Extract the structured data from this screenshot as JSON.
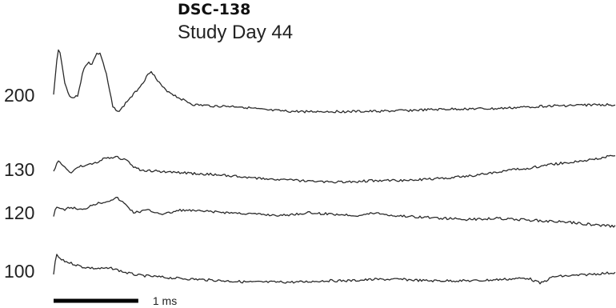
{
  "header": {
    "subject_id": "DSC-138",
    "session": "Study Day 44"
  },
  "chart_data": {
    "type": "line",
    "title": "DSC-138",
    "subtitle": "Study Day 44",
    "xlabel": "",
    "ylabel": "",
    "scale_bar": {
      "value": 1,
      "unit": "ms",
      "label": "1 ms"
    },
    "x_range_ms": [
      0,
      6.64
    ],
    "grid": false,
    "legend": "none",
    "line_color": "#2a2a2a",
    "series": [
      {
        "name": "200",
        "points": [
          [
            0,
            0
          ],
          [
            0.03,
            -1.1
          ],
          [
            0.06,
            -1.75
          ],
          [
            0.09,
            -1.35
          ],
          [
            0.13,
            -0.45
          ],
          [
            0.2,
            0.1
          ],
          [
            0.28,
            0.05
          ],
          [
            0.35,
            -0.9
          ],
          [
            0.41,
            -1.25
          ],
          [
            0.45,
            -1.1
          ],
          [
            0.5,
            -1.5
          ],
          [
            0.55,
            -1.55
          ],
          [
            0.62,
            -0.8
          ],
          [
            0.7,
            0.45
          ],
          [
            0.78,
            0.6
          ],
          [
            0.86,
            0.25
          ],
          [
            0.95,
            -0.05
          ],
          [
            1.05,
            -0.45
          ],
          [
            1.15,
            -0.92
          ],
          [
            1.22,
            -0.55
          ],
          [
            1.3,
            -0.25
          ],
          [
            1.45,
            0.05
          ],
          [
            1.65,
            0.35
          ],
          [
            1.9,
            0.4
          ],
          [
            2.2,
            0.42
          ],
          [
            2.5,
            0.55
          ],
          [
            2.8,
            0.6
          ],
          [
            3.1,
            0.6
          ],
          [
            3.4,
            0.6
          ],
          [
            3.7,
            0.6
          ],
          [
            4.0,
            0.58
          ],
          [
            4.3,
            0.55
          ],
          [
            4.6,
            0.52
          ],
          [
            4.9,
            0.5
          ],
          [
            5.2,
            0.5
          ],
          [
            5.5,
            0.45
          ],
          [
            5.8,
            0.4
          ],
          [
            6.1,
            0.38
          ],
          [
            6.4,
            0.35
          ],
          [
            6.64,
            0.35
          ]
        ]
      },
      {
        "name": "130",
        "points": [
          [
            0,
            0.1
          ],
          [
            0.05,
            -0.35
          ],
          [
            0.12,
            -0.1
          ],
          [
            0.2,
            0.1
          ],
          [
            0.3,
            -0.1
          ],
          [
            0.45,
            -0.2
          ],
          [
            0.6,
            -0.4
          ],
          [
            0.75,
            -0.45
          ],
          [
            0.85,
            -0.35
          ],
          [
            0.95,
            -0.1
          ],
          [
            1.05,
            0.05
          ],
          [
            1.2,
            0.05
          ],
          [
            1.4,
            0.1
          ],
          [
            1.7,
            0.15
          ],
          [
            2.0,
            0.2
          ],
          [
            2.3,
            0.3
          ],
          [
            2.6,
            0.35
          ],
          [
            2.9,
            0.4
          ],
          [
            3.2,
            0.45
          ],
          [
            3.5,
            0.45
          ],
          [
            3.8,
            0.4
          ],
          [
            4.1,
            0.4
          ],
          [
            4.4,
            0.35
          ],
          [
            4.7,
            0.3
          ],
          [
            5.0,
            0.2
          ],
          [
            5.3,
            0.05
          ],
          [
            5.6,
            -0.05
          ],
          [
            5.9,
            -0.2
          ],
          [
            6.2,
            -0.3
          ],
          [
            6.5,
            -0.45
          ],
          [
            6.64,
            -0.55
          ]
        ]
      },
      {
        "name": "120",
        "points": [
          [
            0,
            0.1
          ],
          [
            0.03,
            -0.25
          ],
          [
            0.1,
            -0.1
          ],
          [
            0.2,
            -0.2
          ],
          [
            0.35,
            -0.1
          ],
          [
            0.45,
            -0.3
          ],
          [
            0.6,
            -0.4
          ],
          [
            0.75,
            -0.55
          ],
          [
            0.85,
            -0.3
          ],
          [
            0.95,
            0.0
          ],
          [
            1.1,
            -0.1
          ],
          [
            1.3,
            0.05
          ],
          [
            1.5,
            -0.1
          ],
          [
            1.8,
            -0.05
          ],
          [
            2.1,
            0.0
          ],
          [
            2.4,
            0.05
          ],
          [
            2.7,
            0.1
          ],
          [
            3.0,
            0.0
          ],
          [
            3.3,
            0.05
          ],
          [
            3.6,
            0.1
          ],
          [
            3.8,
            0.0
          ],
          [
            4.0,
            0.1
          ],
          [
            4.3,
            0.15
          ],
          [
            4.6,
            0.2
          ],
          [
            4.9,
            0.25
          ],
          [
            5.2,
            0.2
          ],
          [
            5.5,
            0.25
          ],
          [
            5.8,
            0.3
          ],
          [
            6.1,
            0.35
          ],
          [
            6.4,
            0.45
          ],
          [
            6.64,
            0.5
          ]
        ]
      },
      {
        "name": "100",
        "points": [
          [
            0,
            0.1
          ],
          [
            0.03,
            -0.6
          ],
          [
            0.1,
            -0.4
          ],
          [
            0.2,
            -0.3
          ],
          [
            0.35,
            -0.15
          ],
          [
            0.5,
            -0.1
          ],
          [
            0.7,
            -0.1
          ],
          [
            0.85,
            0.05
          ],
          [
            1.0,
            0.15
          ],
          [
            1.2,
            0.2
          ],
          [
            1.4,
            0.25
          ],
          [
            1.7,
            0.3
          ],
          [
            2.0,
            0.35
          ],
          [
            2.3,
            0.4
          ],
          [
            2.6,
            0.4
          ],
          [
            2.9,
            0.4
          ],
          [
            3.2,
            0.35
          ],
          [
            3.5,
            0.35
          ],
          [
            3.8,
            0.3
          ],
          [
            4.1,
            0.3
          ],
          [
            4.4,
            0.35
          ],
          [
            4.7,
            0.35
          ],
          [
            5.0,
            0.35
          ],
          [
            5.3,
            0.3
          ],
          [
            5.6,
            0.25
          ],
          [
            5.75,
            0.45
          ],
          [
            5.9,
            0.2
          ],
          [
            6.2,
            0.15
          ],
          [
            6.4,
            0.1
          ],
          [
            6.64,
            0.05
          ]
        ]
      }
    ]
  }
}
